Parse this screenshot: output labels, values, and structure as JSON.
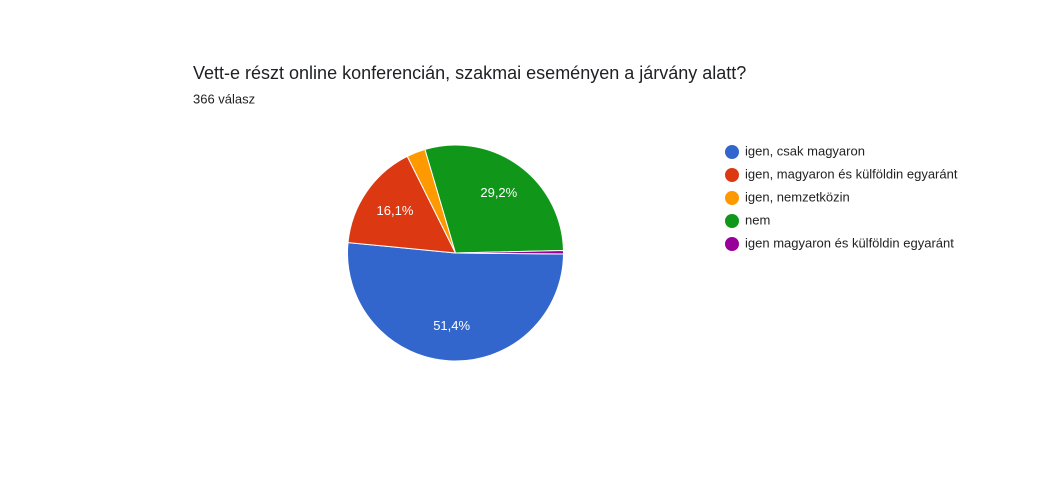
{
  "chart_data": {
    "type": "pie",
    "title": "Vett-e részt online konferencián, szakmai eseményen a járvány alatt?",
    "subtitle": "366 válasz",
    "categories": [
      "igen, csak magyaron",
      "igen, magyaron és külföldin egyaránt",
      "igen, nemzetközin",
      "nem",
      "igen magyaron és külföldin egyaránt"
    ],
    "values": [
      51.4,
      16.1,
      2.8,
      29.2,
      0.5
    ],
    "value_labels": [
      "51,4%",
      "16,1%",
      null,
      "29,2%",
      null
    ],
    "colors": [
      "#3366cc",
      "#dc3912",
      "#ff9900",
      "#109618",
      "#990099"
    ]
  }
}
